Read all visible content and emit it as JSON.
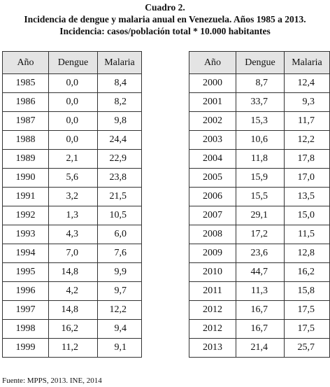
{
  "title": {
    "line1": "Cuadro 2.",
    "line2": "Incidencia de dengue y malaria anual en Venezuela. Años 1985 a 2013.",
    "line3": "Incidencia: casos/población total * 10.000 habitantes"
  },
  "tables": [
    {
      "header": [
        "Año",
        "Dengue",
        "Malaria"
      ],
      "rows": [
        [
          "1985",
          "0,0",
          "8,4"
        ],
        [
          "1986",
          "0,0",
          "8,2"
        ],
        [
          "1987",
          "0,0",
          "9,8"
        ],
        [
          "1988",
          "0,0",
          "24,4"
        ],
        [
          "1989",
          "2,1",
          "22,9"
        ],
        [
          "1990",
          "5,6",
          "23,8"
        ],
        [
          "1991",
          "3,2",
          "21,5"
        ],
        [
          "1992",
          "1,3",
          "10,5"
        ],
        [
          "1993",
          "4,3",
          "6,0"
        ],
        [
          "1994",
          "7,0",
          "7,6"
        ],
        [
          "1995",
          "14,8",
          "9,9"
        ],
        [
          "1996",
          "4,2",
          "9,7"
        ],
        [
          "1997",
          "14,8",
          "12,2"
        ],
        [
          "1998",
          "16,2",
          "9,4"
        ],
        [
          "1999",
          "11,2",
          "9,1"
        ]
      ]
    },
    {
      "header": [
        "Año",
        "Dengue",
        "Malaria"
      ],
      "rows": [
        [
          "2000",
          "8,7",
          "12,4"
        ],
        [
          "2001",
          "33,7",
          "9,3"
        ],
        [
          "2002",
          "15,3",
          "11,7"
        ],
        [
          "2003",
          "10,6",
          "12,2"
        ],
        [
          "2004",
          "11,8",
          "17,8"
        ],
        [
          "2005",
          "15,9",
          "17,0"
        ],
        [
          "2006",
          "15,5",
          "13,5"
        ],
        [
          "2007",
          "29,1",
          "15,0"
        ],
        [
          "2008",
          "17,2",
          "11,5"
        ],
        [
          "2009",
          "23,6",
          "12,8"
        ],
        [
          "2010",
          "44,7",
          "16,2"
        ],
        [
          "2011",
          "11,3",
          "15,8"
        ],
        [
          "2012",
          "16,7",
          "17,5"
        ],
        [
          "2012",
          "16,7",
          "17,5"
        ],
        [
          "2013",
          "21,4",
          "25,7"
        ]
      ]
    }
  ],
  "footnote": "Fuente: MPPS, 2013. INE, 2014"
}
